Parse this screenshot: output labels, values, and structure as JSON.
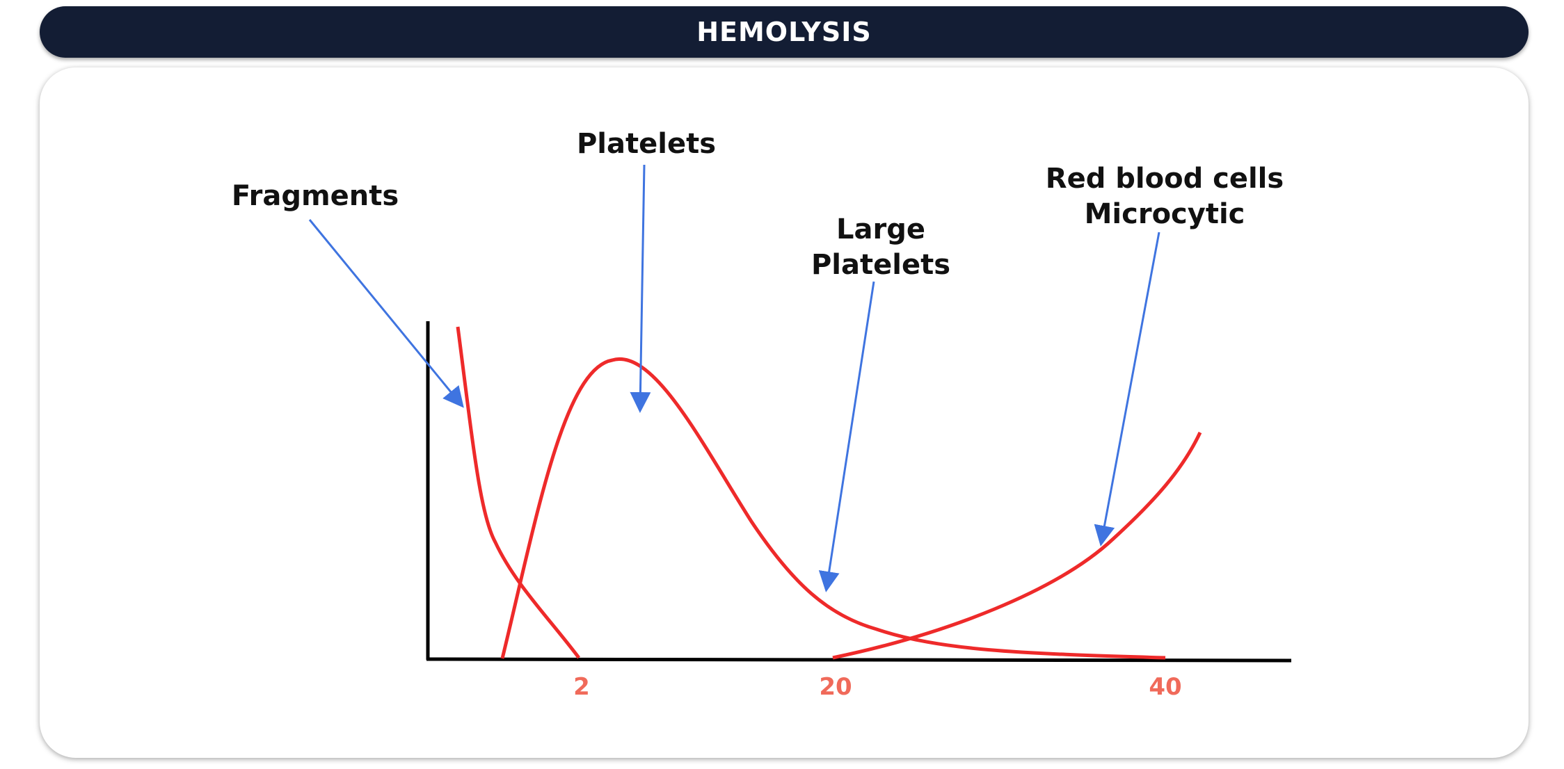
{
  "header": {
    "title": "HEMOLYSIS"
  },
  "labels": {
    "fragments": "Fragments",
    "platelets": "Platelets",
    "large_platelets_line1": "Large",
    "large_platelets_line2": "Platelets",
    "rbc_line1": "Red blood cells",
    "rbc_line2": "Microcytic"
  },
  "axis": {
    "ticks": [
      "2",
      "20",
      "40"
    ]
  },
  "colors": {
    "curve": "#ee2a2a",
    "arrow": "#3f74e0",
    "axis": "#000000",
    "tick": "#f06a5a",
    "header_bg": "#131d34"
  }
}
